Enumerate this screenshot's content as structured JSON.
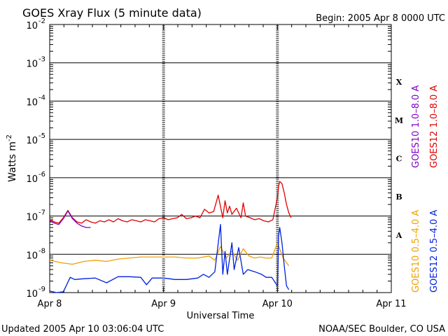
{
  "header": {
    "title": "GOES Xray Flux (5 minute data)",
    "begin": "Begin:  2005 Apr 8 0000 UTC"
  },
  "footer": {
    "updated": "Updated 2005 Apr 10 03:06:04 UTC",
    "credit": "NOAA/SEC Boulder, CO USA"
  },
  "colors": {
    "goes10_long": "#7f00c8",
    "goes12_long": "#e00000",
    "goes10_short": "#f0a000",
    "goes12_short": "#0020e0",
    "grid": "#000000"
  },
  "chart_data": {
    "type": "line",
    "title": "GOES Xray Flux (5 minute data)",
    "xlabel": "Universal Time",
    "ylabel": "Watts m",
    "ylabel_sup": "-2",
    "yscale": "log",
    "ylim": [
      1e-09,
      0.01
    ],
    "xlim_days": [
      0,
      3
    ],
    "x_ticks": [
      "Apr 8",
      "Apr 9",
      "Apr 10",
      "Apr 11"
    ],
    "y_ticks": [
      {
        "base": "10",
        "exp": "-9"
      },
      {
        "base": "10",
        "exp": "-8"
      },
      {
        "base": "10",
        "exp": "-7"
      },
      {
        "base": "10",
        "exp": "-6"
      },
      {
        "base": "10",
        "exp": "-5"
      },
      {
        "base": "10",
        "exp": "-4"
      },
      {
        "base": "10",
        "exp": "-3"
      },
      {
        "base": "10",
        "exp": "-2"
      }
    ],
    "flare_classes": [
      "A",
      "B",
      "C",
      "M",
      "X"
    ],
    "legend": {
      "long_left": "GOES10 1.0–8.0 A",
      "long_right": "GOES12 1.0–8.0 A",
      "short_left": "GOES10 0.5–4.0 A",
      "short_right": "GOES12 0.5–4.0 A"
    },
    "series": [
      {
        "name": "GOES12 1.0–8.0 A",
        "color": "#e00000",
        "x": [
          0.0,
          0.04,
          0.08,
          0.12,
          0.16,
          0.2,
          0.24,
          0.28,
          0.32,
          0.36,
          0.4,
          0.44,
          0.48,
          0.52,
          0.56,
          0.6,
          0.64,
          0.68,
          0.72,
          0.76,
          0.8,
          0.84,
          0.88,
          0.92,
          0.96,
          1.0,
          1.04,
          1.08,
          1.12,
          1.16,
          1.2,
          1.24,
          1.28,
          1.32,
          1.36,
          1.4,
          1.44,
          1.48,
          1.52,
          1.54,
          1.56,
          1.58,
          1.6,
          1.64,
          1.68,
          1.7,
          1.72,
          1.76,
          1.8,
          1.84,
          1.88,
          1.92,
          1.96,
          2.0,
          2.01,
          2.02,
          2.04,
          2.06,
          2.08,
          2.1,
          2.12
        ],
        "y": [
          8e-08,
          7e-08,
          6.5e-08,
          9e-08,
          1.4e-07,
          9e-08,
          7e-08,
          6.5e-08,
          8e-08,
          7e-08,
          6.5e-08,
          7.5e-08,
          7e-08,
          8e-08,
          7e-08,
          8.5e-08,
          7.5e-08,
          7e-08,
          8e-08,
          7.5e-08,
          7e-08,
          8e-08,
          7.5e-08,
          7e-08,
          8.5e-08,
          9e-08,
          8e-08,
          8.5e-08,
          9e-08,
          1.1e-07,
          8.5e-08,
          9e-08,
          1e-07,
          9e-08,
          1.5e-07,
          1.2e-07,
          1.3e-07,
          3.5e-07,
          9e-08,
          2.5e-07,
          1.2e-07,
          1.8e-07,
          1.1e-07,
          1.6e-07,
          9e-08,
          2.2e-07,
          1e-07,
          9e-08,
          8e-08,
          8.5e-08,
          7.5e-08,
          7e-08,
          8e-08,
          3e-07,
          6e-07,
          8e-07,
          7e-07,
          4e-07,
          2e-07,
          1.2e-07,
          9e-08
        ]
      },
      {
        "name": "GOES10 1.0–8.0 A",
        "color": "#7f00c8",
        "x": [
          0.0,
          0.04,
          0.08,
          0.12,
          0.16,
          0.2,
          0.24,
          0.28,
          0.32,
          0.36
        ],
        "y": [
          7.5e-08,
          6.5e-08,
          6e-08,
          8.5e-08,
          1.35e-07,
          8.5e-08,
          6.5e-08,
          5.5e-08,
          5e-08,
          5e-08
        ]
      },
      {
        "name": "GOES10 0.5–4.0 A",
        "color": "#f0a000",
        "x": [
          0.0,
          0.1,
          0.2,
          0.3,
          0.4,
          0.5,
          0.6,
          0.7,
          0.8,
          0.9,
          1.0,
          1.1,
          1.2,
          1.3,
          1.4,
          1.45,
          1.5,
          1.55,
          1.6,
          1.65,
          1.7,
          1.75,
          1.8,
          1.85,
          1.9,
          1.95,
          2.0,
          2.05,
          2.1
        ],
        "y": [
          7e-09,
          6e-09,
          5.5e-09,
          6.5e-09,
          7e-09,
          6.5e-09,
          7.5e-09,
          8e-09,
          8.5e-09,
          8.5e-09,
          8.5e-09,
          8.5e-09,
          8e-09,
          8e-09,
          9e-09,
          7e-09,
          1.6e-08,
          8e-09,
          1.2e-08,
          7e-09,
          1.4e-08,
          9e-09,
          8e-09,
          8.5e-09,
          8e-09,
          8e-09,
          2e-08,
          8e-09,
          5e-09
        ]
      },
      {
        "name": "GOES12 0.5–4.0 A",
        "color": "#0020e0",
        "x": [
          0.0,
          0.06,
          0.12,
          0.18,
          0.22,
          0.3,
          0.4,
          0.5,
          0.6,
          0.7,
          0.8,
          0.85,
          0.9,
          1.0,
          1.05,
          1.1,
          1.2,
          1.3,
          1.35,
          1.4,
          1.45,
          1.5,
          1.52,
          1.54,
          1.56,
          1.6,
          1.62,
          1.66,
          1.7,
          1.74,
          1.8,
          1.86,
          1.9,
          1.95,
          2.0,
          2.01,
          2.02,
          2.04,
          2.06,
          2.08,
          2.1
        ],
        "y": [
          1.1e-09,
          1e-09,
          1.05e-09,
          2.5e-09,
          2.2e-09,
          2.3e-09,
          2.4e-09,
          1.8e-09,
          2.6e-09,
          2.6e-09,
          2.5e-09,
          1.6e-09,
          2.4e-09,
          2.4e-09,
          2.3e-09,
          2.2e-09,
          2.2e-09,
          2.4e-09,
          3e-09,
          2.5e-09,
          3.5e-09,
          6e-08,
          3e-09,
          1.2e-08,
          3e-09,
          2e-08,
          4e-09,
          1.5e-08,
          3e-09,
          4e-09,
          3.5e-09,
          3e-09,
          2.5e-09,
          2.5e-09,
          1.5e-09,
          3e-08,
          5e-08,
          2e-08,
          5e-09,
          1.5e-09,
          1.2e-09
        ]
      }
    ]
  }
}
